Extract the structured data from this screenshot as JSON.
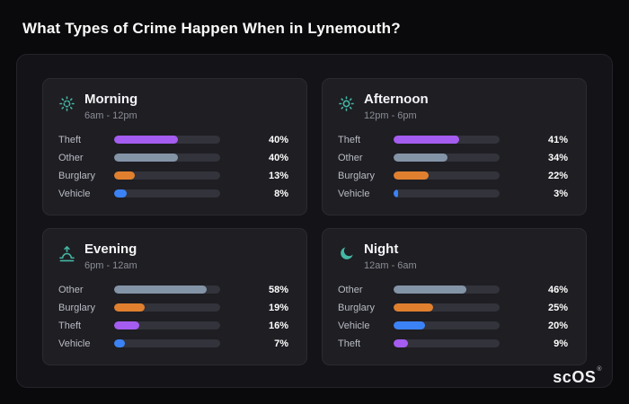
{
  "page": {
    "title": "What Types of Crime Happen When in Lynemouth?"
  },
  "brand": {
    "name": "scOS",
    "registered": "®"
  },
  "colors": {
    "accent_teal": "#45b8a5",
    "theft": "#a55cf0",
    "other": "#8494a7",
    "burglary": "#e0802f",
    "vehicle": "#3b82f6",
    "track": "#32333b"
  },
  "cards": [
    {
      "title": "Morning",
      "subtitle": "6am - 12pm",
      "icon": "sun-icon",
      "rows": [
        {
          "label": "Theft",
          "pct": "40%",
          "value": 40,
          "color": "#a55cf0"
        },
        {
          "label": "Other",
          "pct": "40%",
          "value": 40,
          "color": "#8494a7"
        },
        {
          "label": "Burglary",
          "pct": "13%",
          "value": 13,
          "color": "#e0802f"
        },
        {
          "label": "Vehicle",
          "pct": "8%",
          "value": 8,
          "color": "#3b82f6"
        }
      ]
    },
    {
      "title": "Afternoon",
      "subtitle": "12pm - 6pm",
      "icon": "sun-icon",
      "rows": [
        {
          "label": "Theft",
          "pct": "41%",
          "value": 41,
          "color": "#a55cf0"
        },
        {
          "label": "Other",
          "pct": "34%",
          "value": 34,
          "color": "#8494a7"
        },
        {
          "label": "Burglary",
          "pct": "22%",
          "value": 22,
          "color": "#e0802f"
        },
        {
          "label": "Vehicle",
          "pct": "3%",
          "value": 3,
          "color": "#3b82f6"
        }
      ]
    },
    {
      "title": "Evening",
      "subtitle": "6pm - 12am",
      "icon": "sunset-icon",
      "rows": [
        {
          "label": "Other",
          "pct": "58%",
          "value": 58,
          "color": "#8494a7"
        },
        {
          "label": "Burglary",
          "pct": "19%",
          "value": 19,
          "color": "#e0802f"
        },
        {
          "label": "Theft",
          "pct": "16%",
          "value": 16,
          "color": "#a55cf0"
        },
        {
          "label": "Vehicle",
          "pct": "7%",
          "value": 7,
          "color": "#3b82f6"
        }
      ]
    },
    {
      "title": "Night",
      "subtitle": "12am - 6am",
      "icon": "moon-icon",
      "rows": [
        {
          "label": "Other",
          "pct": "46%",
          "value": 46,
          "color": "#8494a7"
        },
        {
          "label": "Burglary",
          "pct": "25%",
          "value": 25,
          "color": "#e0802f"
        },
        {
          "label": "Vehicle",
          "pct": "20%",
          "value": 20,
          "color": "#3b82f6"
        },
        {
          "label": "Theft",
          "pct": "9%",
          "value": 9,
          "color": "#a55cf0"
        }
      ]
    }
  ],
  "chart_data": [
    {
      "type": "bar",
      "title": "Morning",
      "subtitle": "6am - 12pm",
      "categories": [
        "Theft",
        "Other",
        "Burglary",
        "Vehicle"
      ],
      "values": [
        40,
        40,
        13,
        8
      ],
      "unit": "%",
      "orientation": "horizontal",
      "xlim": [
        0,
        65
      ],
      "grid": false,
      "legend": "none"
    },
    {
      "type": "bar",
      "title": "Afternoon",
      "subtitle": "12pm - 6pm",
      "categories": [
        "Theft",
        "Other",
        "Burglary",
        "Vehicle"
      ],
      "values": [
        41,
        34,
        22,
        3
      ],
      "unit": "%",
      "orientation": "horizontal",
      "xlim": [
        0,
        65
      ],
      "grid": false,
      "legend": "none"
    },
    {
      "type": "bar",
      "title": "Evening",
      "subtitle": "6pm - 12am",
      "categories": [
        "Other",
        "Burglary",
        "Theft",
        "Vehicle"
      ],
      "values": [
        58,
        19,
        16,
        7
      ],
      "unit": "%",
      "orientation": "horizontal",
      "xlim": [
        0,
        65
      ],
      "grid": false,
      "legend": "none"
    },
    {
      "type": "bar",
      "title": "Night",
      "subtitle": "12am - 6am",
      "categories": [
        "Other",
        "Burglary",
        "Vehicle",
        "Theft"
      ],
      "values": [
        46,
        25,
        20,
        9
      ],
      "unit": "%",
      "orientation": "horizontal",
      "xlim": [
        0,
        65
      ],
      "grid": false,
      "legend": "none"
    }
  ]
}
